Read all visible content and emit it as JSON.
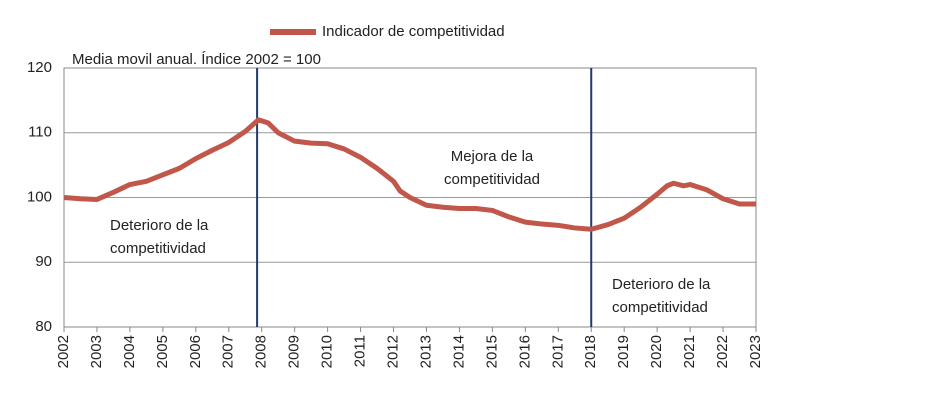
{
  "chart_data": {
    "type": "line",
    "subtitle": "Media movil anual. Índice 2002 = 100",
    "series": [
      {
        "name": "Indicador de competitividad",
        "color": "#c0574a",
        "x": [
          2002,
          2002.5,
          2003,
          2003.5,
          2004,
          2004.5,
          2005,
          2005.5,
          2006,
          2006.5,
          2007,
          2007.5,
          2007.9,
          2008.2,
          2008.5,
          2009,
          2009.5,
          2010,
          2010.5,
          2011,
          2011.5,
          2012,
          2012.2,
          2012.5,
          2013,
          2013.5,
          2014,
          2014.5,
          2015,
          2015.5,
          2016,
          2016.5,
          2017,
          2017.5,
          2018,
          2018.5,
          2019,
          2019.5,
          2020,
          2020.3,
          2020.5,
          2020.8,
          2021,
          2021.5,
          2022,
          2022.5,
          2023
        ],
        "values": [
          100,
          99.8,
          99.7,
          100.8,
          102,
          102.5,
          103.5,
          104.5,
          106,
          107.3,
          108.5,
          110.2,
          112,
          111.5,
          110,
          108.7,
          108.4,
          108.3,
          107.5,
          106.2,
          104.5,
          102.5,
          101,
          100,
          98.8,
          98.5,
          98.3,
          98.3,
          98,
          97,
          96.2,
          95.9,
          95.7,
          95.3,
          95.1,
          95.8,
          96.8,
          98.5,
          100.5,
          101.8,
          102.2,
          101.8,
          102,
          101.2,
          99.8,
          99,
          99
        ]
      }
    ],
    "xlim": [
      2002,
      2023
    ],
    "xticks": [
      2002,
      2003,
      2004,
      2005,
      2006,
      2007,
      2008,
      2009,
      2010,
      2011,
      2012,
      2013,
      2014,
      2015,
      2016,
      2017,
      2018,
      2019,
      2020,
      2021,
      2022,
      2023
    ],
    "ylim": [
      80,
      120
    ],
    "yticks": [
      80,
      90,
      100,
      110,
      120
    ],
    "grid": true,
    "vlines": [
      2007.86,
      2018
    ],
    "vline_color": "#1f3a6e",
    "annotations": [
      {
        "lines": [
          "Deterioro de la",
          "competitividad"
        ],
        "color": "#e8383d"
      },
      {
        "lines": [
          "Mejora de la",
          "competitividad"
        ],
        "color": "#3aaa5c"
      },
      {
        "lines": [
          "Deterioro de la",
          "competitividad"
        ],
        "color": "#e8383d"
      }
    ]
  }
}
